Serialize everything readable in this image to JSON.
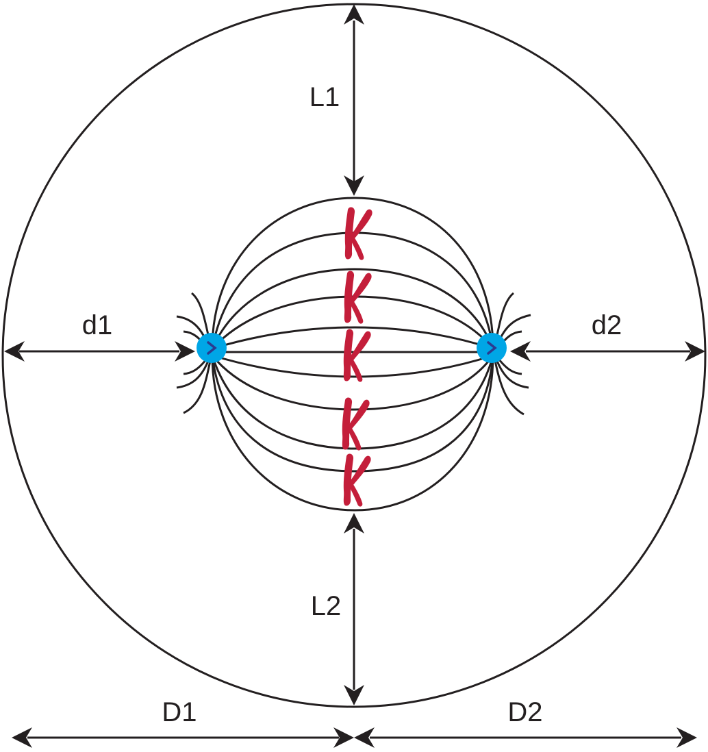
{
  "labels": {
    "L1": "L1",
    "L2": "L2",
    "d1": "d1",
    "d2": "d2",
    "D1": "D1",
    "D2": "D2"
  },
  "chromosome_count": 5,
  "colors": {
    "stroke": "#231f20",
    "chromosome": "#c41e3a",
    "centrosome": "#00a6e6",
    "centriole": "#2b3a8f"
  }
}
